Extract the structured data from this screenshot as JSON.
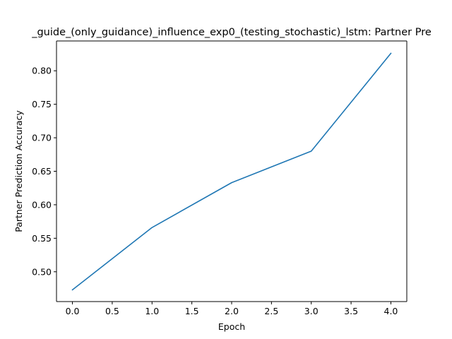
{
  "chart_data": {
    "type": "line",
    "title": "_guide_(only_guidance)_influence_exp0_(testing_stochastic)_lstm: Partner Pre",
    "xlabel": "Epoch",
    "ylabel": "Partner Prediction Accuracy",
    "xlim": [
      -0.2,
      4.2
    ],
    "ylim": [
      0.4555,
      0.8445
    ],
    "xticks": [
      0.0,
      0.5,
      1.0,
      1.5,
      2.0,
      2.5,
      3.0,
      3.5,
      4.0
    ],
    "xtick_labels": [
      "0.0",
      "0.5",
      "1.0",
      "1.5",
      "2.0",
      "2.5",
      "3.0",
      "3.5",
      "4.0"
    ],
    "yticks": [
      0.5,
      0.55,
      0.6,
      0.65,
      0.7,
      0.75,
      0.8
    ],
    "ytick_labels": [
      "0.50",
      "0.55",
      "0.60",
      "0.65",
      "0.70",
      "0.75",
      "0.80"
    ],
    "grid": false,
    "series": [
      {
        "color": "#1f77b4",
        "x": [
          0,
          1,
          2,
          3,
          4
        ],
        "y": [
          0.473,
          0.566,
          0.633,
          0.68,
          0.826
        ]
      }
    ]
  }
}
